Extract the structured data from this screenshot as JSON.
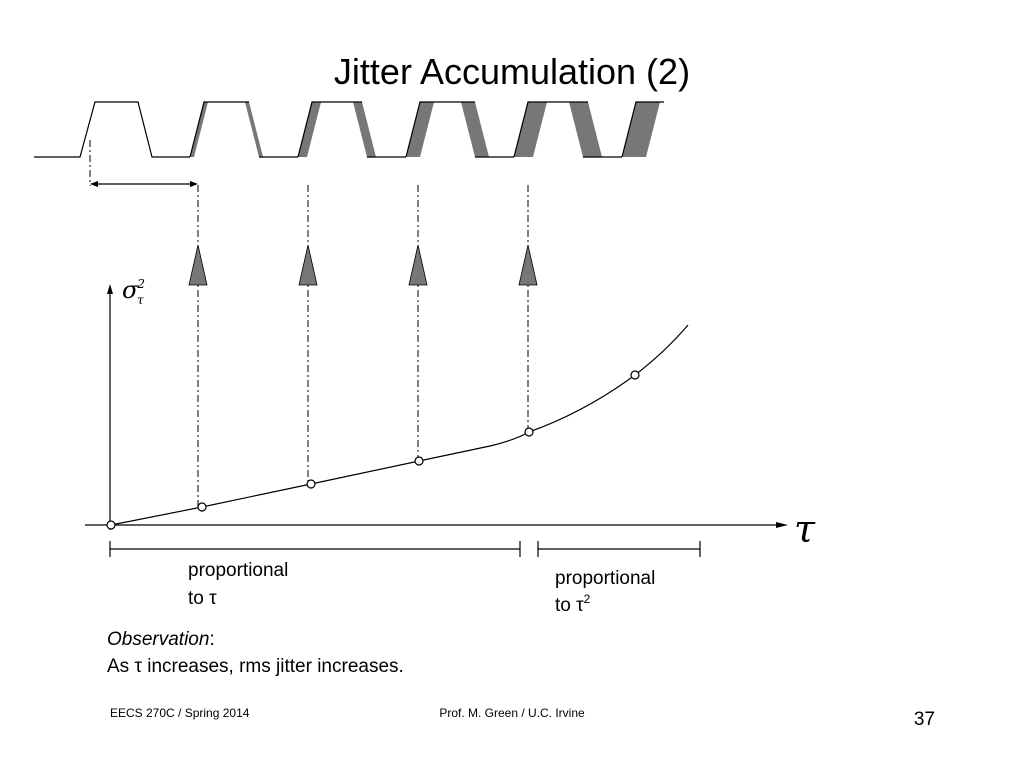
{
  "title": "Jitter Accumulation (2)",
  "y_axis_label": {
    "symbol": "σ",
    "subscript": "τ",
    "superscript": "2"
  },
  "x_axis_label": "τ",
  "brackets": [
    {
      "line1": "proportional",
      "line2": "to τ"
    },
    {
      "line1": "proportional",
      "line2": "to τ",
      "superscript": "2"
    }
  ],
  "observation": {
    "heading": "Observation",
    "colon": ":",
    "text": "As τ increases, rms jitter increases."
  },
  "footer": {
    "left": "EECS 270C / Spring 2014",
    "center": "Prof. M. Green / U.C. Irvine",
    "page": "37"
  }
}
